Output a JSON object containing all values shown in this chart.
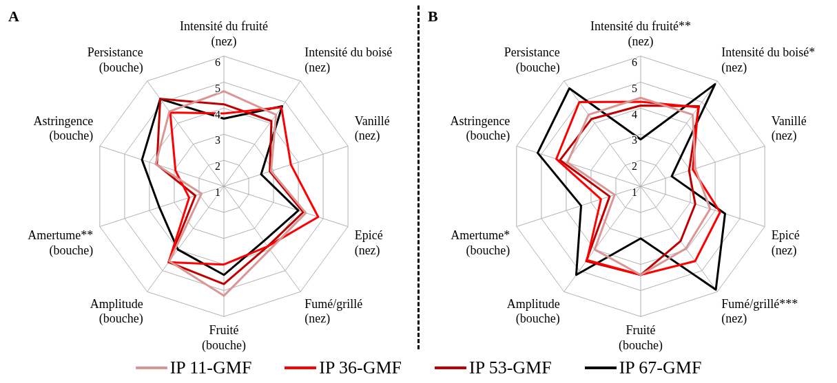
{
  "chart_data": [
    {
      "type": "radar",
      "title": "A",
      "categories": [
        "Intensité du fruité\n(nez)",
        "Intensité du boisé\n(nez)",
        "Vanillé\n(nez)",
        "Epicé\n(nez)",
        "Fumé/grillé\n(nez)",
        "Fruité\n(bouche)",
        "Amplitude\n(bouche)",
        "Amertume**\n(bouche)",
        "Astringence\n(bouche)",
        "Persistance\n(bouche)"
      ],
      "ylim": [
        1,
        6
      ],
      "yticks": [
        1,
        2,
        3,
        4,
        5,
        6
      ],
      "grid": true,
      "legend": "bottom",
      "marker": "none",
      "series": [
        {
          "name": "IP 11-GMF",
          "color": "#d99694",
          "values": [
            4.65,
            4.4,
            2.9,
            4.3,
            4.0,
            5.2,
            4.55,
            1.9,
            3.75,
            4.55
          ]
        },
        {
          "name": "IP 36-GMF",
          "color": "#ff0000",
          "values": [
            3.8,
            4.75,
            3.7,
            4.8,
            3.85,
            4.0,
            4.6,
            2.4,
            2.95,
            4.5
          ]
        },
        {
          "name": "IP 53-GMF",
          "color": "#c00000",
          "values": [
            4.15,
            4.1,
            2.85,
            4.2,
            3.85,
            4.75,
            4.6,
            2.15,
            3.7,
            5.15
          ]
        },
        {
          "name": "IP 67-GMF",
          "color": "#000000",
          "values": [
            3.6,
            4.8,
            2.5,
            4.0,
            3.6,
            4.4,
            4.0,
            3.6,
            4.3,
            5.15
          ]
        }
      ]
    },
    {
      "type": "radar",
      "title": "B",
      "categories": [
        "Intensité du fruité**\n(nez)",
        "Intensité du boisé*\n(nez)",
        "Vanillé\n(nez)",
        "Epicé\n(nez)",
        "Fumé/grillé***\n(nez)",
        "Fruité\n(bouche)",
        "Amplitude\n(bouche)",
        "Amertume*\n(bouche)",
        "Astringence\n(bouche)",
        "Persistance\n(bouche)"
      ],
      "ylim": [
        1,
        6
      ],
      "yticks": [
        1,
        2,
        3,
        4,
        5,
        6
      ],
      "grid": true,
      "legend": "bottom",
      "marker": "none",
      "series": [
        {
          "name": "IP 11-GMF",
          "color": "#d99694",
          "values": [
            4.4,
            4.4,
            3.2,
            3.8,
            3.95,
            4.4,
            4.0,
            2.05,
            3.95,
            4.4
          ]
        },
        {
          "name": "IP 36-GMF",
          "color": "#ff0000",
          "values": [
            4.25,
            4.75,
            3.1,
            4.2,
            4.55,
            4.4,
            4.5,
            2.6,
            4.4,
            5.0
          ]
        },
        {
          "name": "IP 53-GMF",
          "color": "#c00000",
          "values": [
            4.1,
            4.8,
            2.95,
            3.2,
            3.6,
            4.4,
            4.55,
            2.25,
            4.25,
            4.2
          ]
        },
        {
          "name": "IP 67-GMF",
          "color": "#000000",
          "values": [
            2.8,
            5.85,
            2.25,
            4.4,
            5.9,
            3.0,
            5.2,
            3.4,
            5.15,
            5.65
          ]
        }
      ]
    }
  ]
}
